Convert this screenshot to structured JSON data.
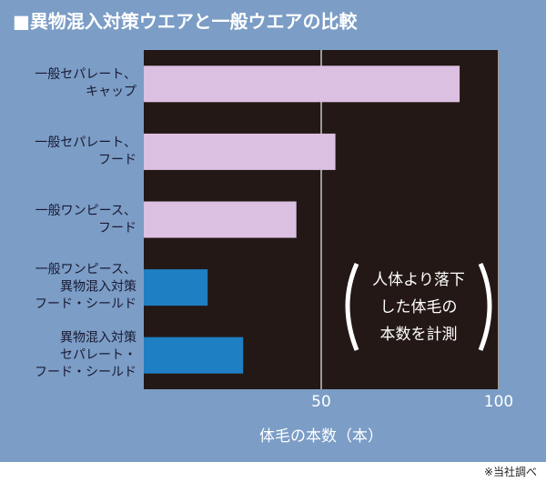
{
  "chart_data": {
    "type": "hbar",
    "title": "■異物混入対策ウエアと一般ウエアの比較",
    "categories": [
      "一般セパレート、\nキャップ",
      "一般セパレート、\nフード",
      "一般ワンピース、\nフード",
      "一般ワンピース、\n異物混入対策\nフード・シールド",
      "異物混入対策\nセパレート・\nフード・シールド"
    ],
    "values": [
      89,
      54,
      43,
      18,
      28
    ],
    "colors": [
      "#dcc0e2",
      "#dcc0e2",
      "#dcc0e2",
      "#1f7fc3",
      "#1f7fc3"
    ],
    "xlim": [
      0,
      100
    ],
    "xticks": [
      50,
      100
    ],
    "grid": true,
    "x_label": "体毛の本数（本）",
    "annotation": "人体より落下\nした体毛の\n本数を計測",
    "note": "※当社調べ"
  }
}
